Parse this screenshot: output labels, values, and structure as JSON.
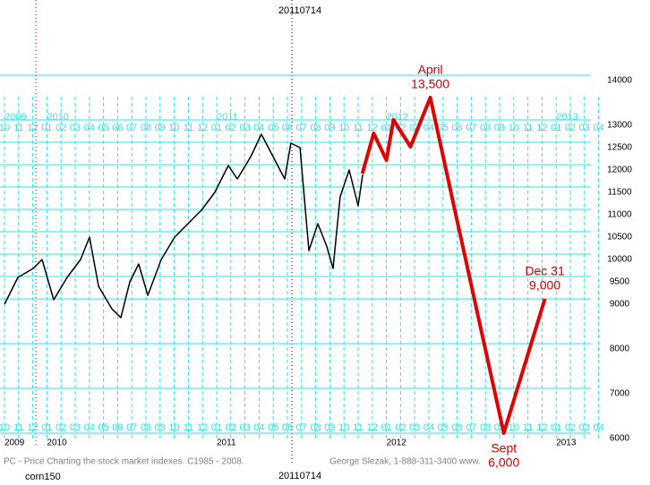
{
  "chart_data": {
    "type": "line",
    "date_labels": [
      "20110714",
      "20110714"
    ],
    "symbol": "corn150",
    "footer_left": "PC - Price Charting the stock market indexes. C1985 - 2008.",
    "footer_right": "George Slezak, 1-888-311-3400 www.",
    "categories": [
      "10",
      "11",
      "12",
      "01",
      "02",
      "03",
      "04",
      "05",
      "06",
      "07",
      "08",
      "09",
      "10",
      "11",
      "12",
      "01",
      "02",
      "03",
      "04",
      "05",
      "06",
      "07",
      "08",
      "09",
      "10",
      "11",
      "12",
      "01",
      "02",
      "03",
      "04",
      "05",
      "06",
      "07",
      "08",
      "09",
      "10",
      "11",
      "12",
      "01",
      "02",
      "03",
      "04"
    ],
    "years": [
      {
        "value": 0,
        "label": "2009"
      },
      {
        "value": 3,
        "label": "2010"
      },
      {
        "value": 15,
        "label": "2011"
      },
      {
        "value": 27,
        "label": "2012"
      },
      {
        "value": 39,
        "label": "2013"
      }
    ],
    "xlim": [
      0,
      42
    ],
    "ylim": [
      6000,
      14000
    ],
    "yticks": [
      14000,
      13000,
      12500,
      12000,
      11500,
      11000,
      10500,
      10000,
      9500,
      9000,
      8000,
      7000,
      6000
    ],
    "grid": true,
    "series": [
      {
        "name": "Index",
        "color": "#000000",
        "x": [
          0,
          0.95,
          2.03,
          2.66,
          3.48,
          4.43,
          5.38,
          6.01,
          6.65,
          7.59,
          8.23,
          8.86,
          9.49,
          10.13,
          11.08,
          12.03,
          12.97,
          13.92,
          14.87,
          15.82,
          16.46,
          17.41,
          18.16,
          18.99,
          19.81,
          20.25,
          20.89,
          21.52,
          22.15,
          22.78,
          23.23,
          23.73,
          24.37,
          25,
          25.32
        ],
        "values": [
          8880,
          9480,
          9680,
          9880,
          8980,
          9480,
          9880,
          10380,
          9280,
          8780,
          8580,
          9380,
          9780,
          9080,
          9880,
          10380,
          10680,
          10980,
          11380,
          11980,
          11680,
          12180,
          12680,
          12180,
          11680,
          12480,
          12380,
          10080,
          10680,
          10180,
          9680,
          11280,
          11880,
          11080,
          11780
        ]
      },
      {
        "name": "Projection",
        "color": "#e00000",
        "x": [
          25.3,
          26.1,
          27,
          27.5,
          28.7,
          30.1,
          32.1,
          35.3,
          38.2
        ],
        "values": [
          11800,
          12700,
          12100,
          13000,
          12400,
          13500,
          10600,
          6000,
          9000
        ]
      }
    ],
    "annotations": [
      {
        "x": 30.1,
        "value": 13500,
        "label": "April",
        "value_label": "13,500"
      },
      {
        "x": 35.3,
        "value": 6000,
        "label": "Sept",
        "value_label": "6,000"
      },
      {
        "x": 38.2,
        "value": 9000,
        "label": "Dec 31",
        "value_label": "9,000"
      }
    ]
  }
}
